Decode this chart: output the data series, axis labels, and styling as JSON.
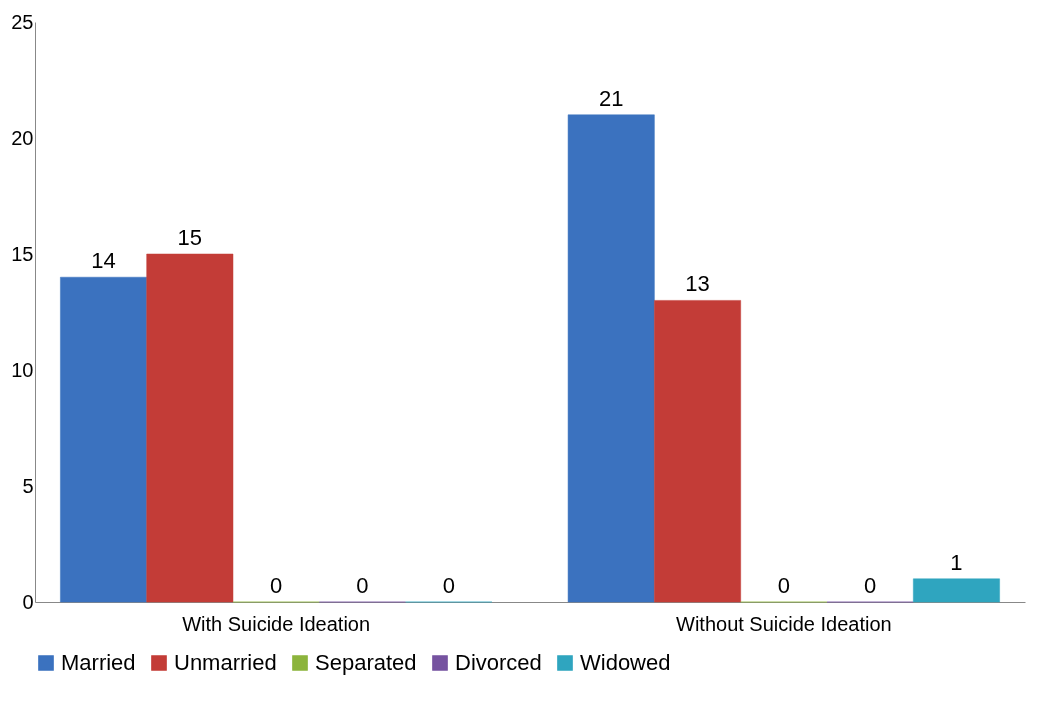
{
  "chart_data": {
    "type": "bar",
    "categories": [
      "With Suicide Ideation",
      "Without Suicide Ideation"
    ],
    "series": [
      {
        "name": "Married",
        "color": "#3b72bf",
        "values": [
          14,
          21
        ]
      },
      {
        "name": "Unmarried",
        "color": "#c33c37",
        "values": [
          15,
          13
        ]
      },
      {
        "name": "Separated",
        "color": "#8cb43c",
        "values": [
          0,
          0
        ]
      },
      {
        "name": "Divorced",
        "color": "#7653a0",
        "values": [
          0,
          0
        ]
      },
      {
        "name": "Widowed",
        "color": "#2fa5bf",
        "values": [
          0,
          1
        ]
      }
    ],
    "ylim": [
      0,
      25
    ],
    "yticks": [
      0,
      5,
      10,
      15,
      20,
      25
    ],
    "grid": false,
    "legend": "bottom",
    "data_labels": true
  }
}
